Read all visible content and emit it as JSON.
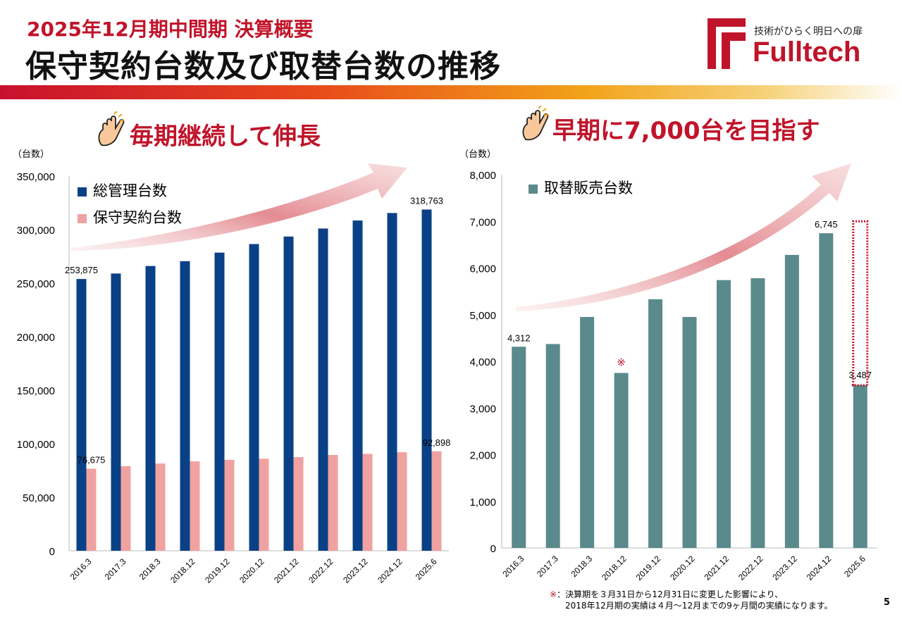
{
  "header": {
    "subtitle": "2025年12月期中間期 決算概要",
    "title": "保守契約台数及び取替台数の推移",
    "logo_tagline": "技術がひらく明日への扉",
    "logo_name": "Fulltech"
  },
  "left_section": {
    "headline": "毎期継続して伸長",
    "unit": "（台数）"
  },
  "right_section": {
    "headline": "早期に7,000台を目指す",
    "unit": "（台数）"
  },
  "footnote": {
    "mark": "※",
    "line1": "：決算期を３月31日から12月31日に変更した影響により、",
    "line2": "2018年12月期の実績は４月～12月までの9ヶ月間の実績になります。"
  },
  "page_number": "5",
  "colors": {
    "navy": "#0a4186",
    "pink": "#f0a2a0",
    "teal": "#5a8a8c",
    "accent_red": "#c0142a"
  },
  "icons": {
    "headline_icon": "pointing-hand-icon"
  },
  "chart_data": [
    {
      "type": "bar",
      "categories": [
        "2016.3",
        "2017.3",
        "2018.3",
        "2018.12",
        "2019.12",
        "2020.12",
        "2021.12",
        "2022.12",
        "2023.12",
        "2024.12",
        "2025.6"
      ],
      "series": [
        {
          "name": "総管理台数",
          "values": [
            253875,
            259000,
            266000,
            270500,
            278500,
            286500,
            293500,
            301000,
            308500,
            315500,
            318763
          ]
        },
        {
          "name": "保守契約台数",
          "values": [
            76675,
            79000,
            81500,
            83500,
            85000,
            86000,
            87500,
            89500,
            90500,
            92000,
            92898
          ]
        }
      ],
      "data_labels": [
        {
          "series": 0,
          "index": 0,
          "text": "253,875"
        },
        {
          "series": 0,
          "index": 10,
          "text": "318,763"
        },
        {
          "series": 1,
          "index": 0,
          "text": "76,675"
        },
        {
          "series": 1,
          "index": 10,
          "text": "92,898"
        }
      ],
      "ylim": [
        0,
        350000
      ],
      "yticks": [
        0,
        50000,
        100000,
        150000,
        200000,
        250000,
        300000,
        350000
      ],
      "ytick_labels": [
        "0",
        "50,000",
        "100,000",
        "150,000",
        "200,000",
        "250,000",
        "300,000",
        "350,000"
      ],
      "legend": "top-left",
      "grid": false
    },
    {
      "type": "bar",
      "categories": [
        "2016.3",
        "2017.3",
        "2018.3",
        "2018.12",
        "2019.12",
        "2020.12",
        "2021.12",
        "2022.12",
        "2023.12",
        "2024.12",
        "2025.6"
      ],
      "series": [
        {
          "name": "取替販売台数",
          "values": [
            4312,
            4370,
            4950,
            3750,
            5330,
            4950,
            5740,
            5780,
            6280,
            6745,
            3487
          ]
        }
      ],
      "data_labels": [
        {
          "series": 0,
          "index": 0,
          "text": "4,312"
        },
        {
          "series": 0,
          "index": 9,
          "text": "6,745"
        },
        {
          "series": 0,
          "index": 10,
          "text": "3,487"
        }
      ],
      "annotations": [
        {
          "index": 3,
          "text": "※"
        }
      ],
      "ylim": [
        0,
        8000
      ],
      "yticks": [
        0,
        1000,
        2000,
        3000,
        4000,
        5000,
        6000,
        7000,
        8000
      ],
      "ytick_labels": [
        "0",
        "1,000",
        "2,000",
        "3,000",
        "4,000",
        "5,000",
        "6,000",
        "7,000",
        "8,000"
      ],
      "legend": "top-left",
      "grid": false
    }
  ]
}
